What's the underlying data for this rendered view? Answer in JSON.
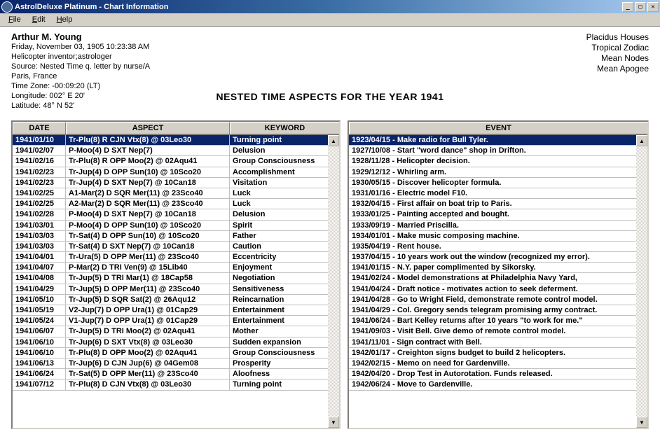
{
  "window": {
    "title": "AstrolDeluxe Platinum - Chart Information"
  },
  "menu": {
    "file": "File",
    "edit": "Edit",
    "help": "Help"
  },
  "person": {
    "name": "Arthur M. Young",
    "datetime": "Friday, November 03, 1905  10:23:38 AM",
    "desc": "Helicopter inventor;astrologer",
    "source": "Source: Nested Time q. letter by nurse/A",
    "place": "Paris, France",
    "tz": "Time Zone: -00:09:20 (LT)",
    "lon": "Longitude: 002° E 20'",
    "lat": "Latitude: 48° N 52'"
  },
  "settings": {
    "l1": "Placidus Houses",
    "l2": "Tropical Zodiac",
    "l3": "Mean Nodes",
    "l4": "Mean Apogee"
  },
  "page_title": "NESTED TIME ASPECTS FOR THE YEAR 1941",
  "aspects_headers": {
    "date": "DATE",
    "aspect": "ASPECT",
    "keyword": "KEYWORD"
  },
  "events_header": "EVENT",
  "aspects": [
    {
      "date": "1941/01/10",
      "aspect": "Tr-Plu(8) R CJN Vtx(8) @ 03Leo30",
      "kw": "Turning point",
      "sel": true
    },
    {
      "date": "1941/02/07",
      "aspect": "P-Moo(4) D SXT Nep(7)",
      "kw": "Delusion"
    },
    {
      "date": "1941/02/16",
      "aspect": "Tr-Plu(8) R OPP Moo(2) @ 02Aqu41",
      "kw": "Group Consciousness"
    },
    {
      "date": "1941/02/23",
      "aspect": "Tr-Jup(4) D OPP Sun(10) @ 10Sco20",
      "kw": "Accomplishment"
    },
    {
      "date": "1941/02/23",
      "aspect": "Tr-Jup(4) D SXT Nep(7) @ 10Can18",
      "kw": "Visitation"
    },
    {
      "date": "1941/02/25",
      "aspect": "A1-Mar(2) D SQR Mer(11) @ 23Sco40",
      "kw": "Luck"
    },
    {
      "date": "1941/02/25",
      "aspect": "A2-Mar(2) D SQR Mer(11) @ 23Sco40",
      "kw": "Luck"
    },
    {
      "date": "1941/02/28",
      "aspect": "P-Moo(4) D SXT Nep(7) @ 10Can18",
      "kw": "Delusion"
    },
    {
      "date": "1941/03/01",
      "aspect": "P-Moo(4) D OPP Sun(10) @ 10Sco20",
      "kw": "Spirit"
    },
    {
      "date": "1941/03/03",
      "aspect": "Tr-Sat(4) D OPP Sun(10) @ 10Sco20",
      "kw": "Father"
    },
    {
      "date": "1941/03/03",
      "aspect": "Tr-Sat(4) D SXT Nep(7) @ 10Can18",
      "kw": "Caution"
    },
    {
      "date": "1941/04/01",
      "aspect": "Tr-Ura(5) D OPP Mer(11) @ 23Sco40",
      "kw": "Eccentricity"
    },
    {
      "date": "1941/04/07",
      "aspect": "P-Mar(2) D TRI Ven(9) @ 15Lib40",
      "kw": "Enjoyment"
    },
    {
      "date": "1941/04/08",
      "aspect": "Tr-Jup(5) D TRI Mar(1) @ 18Cap58",
      "kw": "Negotiation"
    },
    {
      "date": "1941/04/29",
      "aspect": "Tr-Jup(5) D OPP Mer(11) @ 23Sco40",
      "kw": "Sensitiveness"
    },
    {
      "date": "1941/05/10",
      "aspect": "Tr-Jup(5) D SQR Sat(2) @ 26Aqu12",
      "kw": "Reincarnation"
    },
    {
      "date": "1941/05/19",
      "aspect": "V2-Jup(7) D OPP Ura(1) @ 01Cap29",
      "kw": "Entertainment"
    },
    {
      "date": "1941/05/24",
      "aspect": "V1-Jup(7) D OPP Ura(1) @ 01Cap29",
      "kw": "Entertainment"
    },
    {
      "date": "1941/06/07",
      "aspect": "Tr-Jup(5) D TRI Moo(2) @ 02Aqu41",
      "kw": "Mother"
    },
    {
      "date": "1941/06/10",
      "aspect": "Tr-Jup(6) D SXT Vtx(8) @ 03Leo30",
      "kw": "Sudden expansion"
    },
    {
      "date": "1941/06/10",
      "aspect": "Tr-Plu(8) D OPP Moo(2) @ 02Aqu41",
      "kw": "Group Consciousness"
    },
    {
      "date": "1941/06/13",
      "aspect": "Tr-Jup(6) D CJN Jup(6) @ 04Gem08",
      "kw": "Prosperity"
    },
    {
      "date": "1941/06/24",
      "aspect": "Tr-Sat(5) D OPP Mer(11) @ 23Sco40",
      "kw": "Aloofness"
    },
    {
      "date": "1941/07/12",
      "aspect": "Tr-Plu(8) D CJN Vtx(8) @ 03Leo30",
      "kw": "Turning point"
    }
  ],
  "events": [
    {
      "t": "1923/04/15 - Make radio for Bull Tyler.",
      "sel": true
    },
    {
      "t": "1927/10/08 - Start \"word dance\" shop in Drifton."
    },
    {
      "t": "1928/11/28 - Helicopter decision."
    },
    {
      "t": "1929/12/12 - Whirling arm."
    },
    {
      "t": "1930/05/15 - Discover helicopter formula."
    },
    {
      "t": "1931/01/16 - Electric model F10."
    },
    {
      "t": "1932/04/15 - First affair on boat trip to Paris."
    },
    {
      "t": "1933/01/25 - Painting accepted and bought."
    },
    {
      "t": "1933/09/19 - Married Priscilla."
    },
    {
      "t": "1934/01/01 - Make music composing machine."
    },
    {
      "t": "1935/04/19 - Rent house."
    },
    {
      "t": "1937/04/15 - 10 years work out the window (recognized my error)."
    },
    {
      "t": "1941/01/15 - N.Y. paper complimented by Sikorsky."
    },
    {
      "t": "1941/02/24 - Model demonstrations at Philadelphia Navy Yard,"
    },
    {
      "t": "1941/04/24 - Draft notice - motivates action to seek deferment."
    },
    {
      "t": "1941/04/28 - Go to Wright Field, demonstrate remote control model."
    },
    {
      "t": "1941/04/29 - Col. Gregory sends telegram promising army contract."
    },
    {
      "t": "1941/06/24 - Bart Kelley returns after 10 years \"to work for me.\""
    },
    {
      "t": "1941/09/03 - Visit Bell. Give demo of remote control model."
    },
    {
      "t": "1941/11/01 - Sign contract with Bell."
    },
    {
      "t": "1942/01/17 - Creighton signs budget to build 2 helicopters."
    },
    {
      "t": "1942/02/15 - Memo on need for Gardenville."
    },
    {
      "t": "1942/04/20 - Drop Test in Autorotation. Funds released."
    },
    {
      "t": "1942/06/24 - Move to Gardenville."
    }
  ]
}
